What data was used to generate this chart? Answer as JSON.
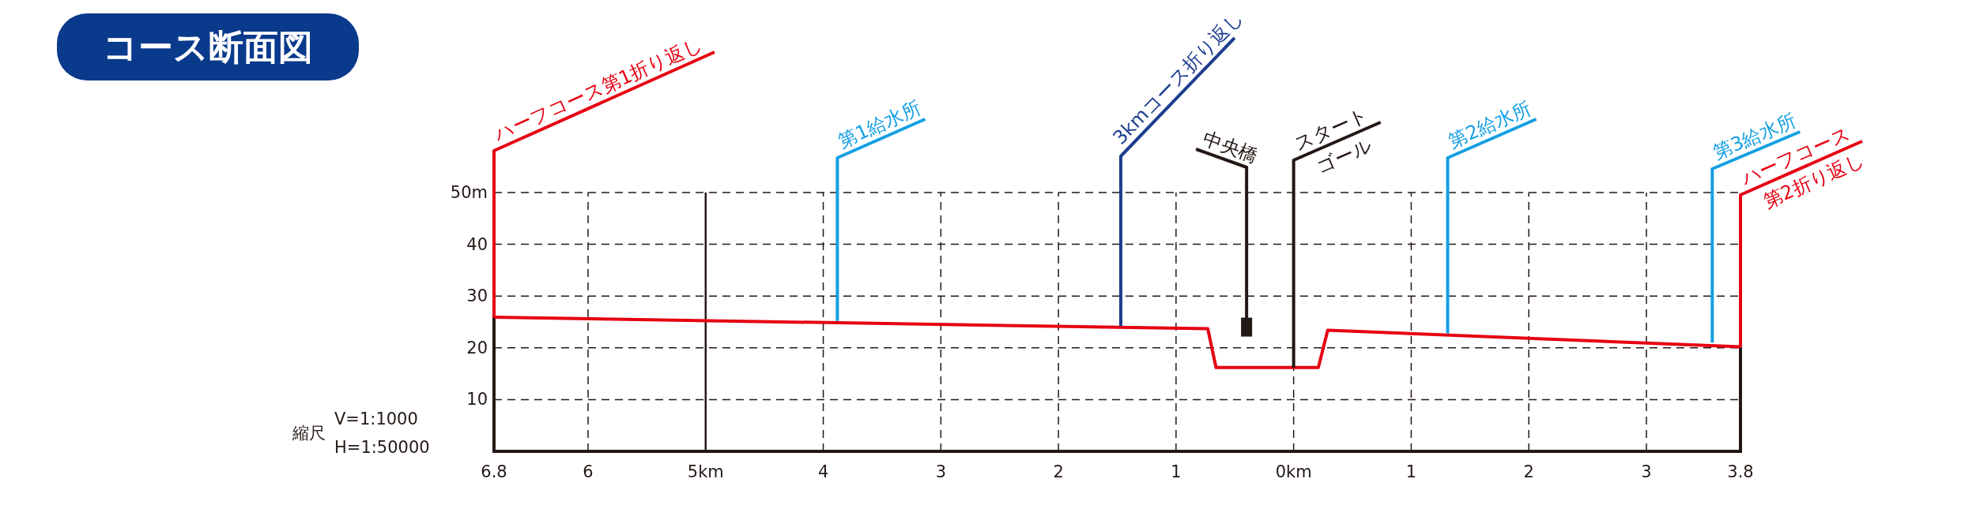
{
  "chart_data": {
    "type": "line",
    "title": "コース断面図",
    "x": [
      -6.8,
      -0.73,
      -0.66,
      0.21,
      0.29,
      3.8
    ],
    "series": [
      {
        "color": "#e60012",
        "values": [
          25.9,
          23.7,
          16.2,
          16.2,
          23.4,
          20.2
        ]
      }
    ],
    "xlim": [
      -6.8,
      3.8
    ],
    "xticks": [
      {
        "value": -6.8,
        "label": "6.8"
      },
      {
        "value": -6,
        "label": "6"
      },
      {
        "value": -5,
        "label": "5km"
      },
      {
        "value": -4,
        "label": "4"
      },
      {
        "value": -3,
        "label": "3"
      },
      {
        "value": -2,
        "label": "2"
      },
      {
        "value": -1,
        "label": "1"
      },
      {
        "value": 0,
        "label": "0km"
      },
      1,
      2,
      3,
      3.8
    ],
    "ylim": [
      0,
      50
    ],
    "yticks": [
      10,
      20,
      30,
      40,
      {
        "value": 50,
        "label": "50m"
      }
    ],
    "grid": true,
    "ref_lines": [
      {
        "axis": "x",
        "value": -5,
        "color": "#231815",
        "line_style": "solid"
      }
    ],
    "annotations": [
      {
        "text": "ハーフコース第1折り返し",
        "x": -6.8,
        "y": 25.9
      },
      {
        "text": "第1給水所",
        "x": -3.88,
        "y": 25.2
      },
      {
        "text": "3kmコース折り返し",
        "x": -1.47,
        "y": 24.2
      },
      {
        "text": "中央橋",
        "x": -0.4,
        "y": 24
      },
      {
        "text": "スタート\nゴール",
        "x": 0,
        "y": 16.2
      },
      {
        "text": "第2給水所",
        "x": 1.31,
        "y": 22.8
      },
      {
        "text": "第3給水所",
        "x": 3.56,
        "y": 21
      },
      {
        "text": "ハーフコース\n第2折り返し",
        "x": 3.8,
        "y": 20.2
      },
      "縮尺",
      "V=1:1000",
      "H=1:50000"
    ]
  }
}
